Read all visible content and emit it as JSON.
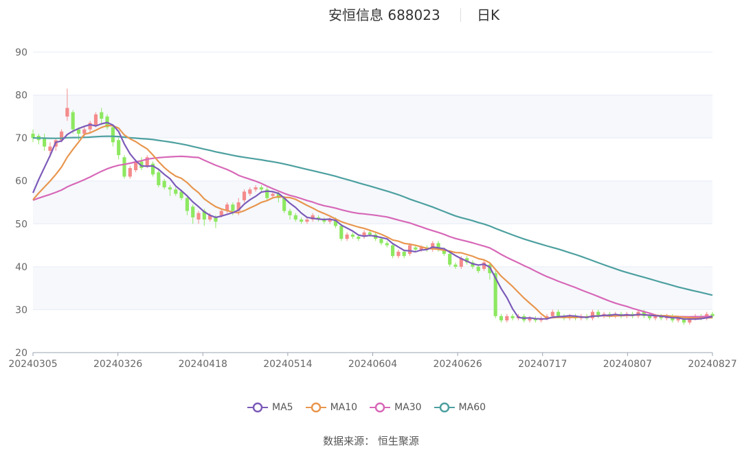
{
  "title": {
    "name": "安恒信息 688023",
    "period": "日K"
  },
  "source_text": "数据来源： 恒生聚源",
  "colors": {
    "up": "#f48b8b",
    "down": "#8de860",
    "ma5": "#7b5ab8",
    "ma10": "#e8964e",
    "ma30": "#d767b7",
    "ma60": "#4c9f9f",
    "grid": "#e6ecf5",
    "band": "#f6f8fc"
  },
  "chart_data": {
    "type": "candlestick",
    "ylim": [
      20,
      90
    ],
    "yticks": [
      20,
      30,
      40,
      50,
      60,
      70,
      80,
      90
    ],
    "xtick_labels": [
      "20240305",
      "20240326",
      "20240418",
      "20240514",
      "20240604",
      "20240626",
      "20240717",
      "20240807",
      "20240827"
    ],
    "candles": [
      [
        71,
        70,
        72,
        69
      ],
      [
        70.5,
        69.5,
        71,
        68.5
      ],
      [
        70,
        68,
        71,
        67
      ],
      [
        67,
        68,
        69,
        65.5
      ],
      [
        68,
        69.5,
        70,
        67
      ],
      [
        69.5,
        71.5,
        72,
        69
      ],
      [
        75,
        77,
        81.5,
        74
      ],
      [
        76,
        72,
        76.5,
        71
      ],
      [
        72,
        71,
        72.5,
        69.5
      ],
      [
        71,
        72,
        72.5,
        70
      ],
      [
        72,
        73.5,
        74,
        71
      ],
      [
        73,
        75.5,
        76,
        72.5
      ],
      [
        76,
        74.5,
        77,
        73
      ],
      [
        75,
        72.5,
        75.5,
        72
      ],
      [
        72.5,
        69,
        73,
        68
      ],
      [
        69.5,
        66,
        70,
        65
      ],
      [
        65.5,
        61,
        66,
        60.5
      ],
      [
        61,
        63,
        63.5,
        60.5
      ],
      [
        62.5,
        64.5,
        65,
        62
      ],
      [
        64.5,
        63,
        65.5,
        62.5
      ],
      [
        63.5,
        65.5,
        66,
        63
      ],
      [
        64,
        61.5,
        64.5,
        61
      ],
      [
        62,
        59,
        62.5,
        58.5
      ],
      [
        60,
        58.5,
        60.5,
        58
      ],
      [
        58.5,
        58,
        59,
        56.5
      ],
      [
        58,
        57,
        58.5,
        56.5
      ],
      [
        57.5,
        56,
        58,
        55.5
      ],
      [
        56,
        53,
        56.5,
        52
      ],
      [
        54,
        51.5,
        54.5,
        50
      ],
      [
        51,
        52.5,
        53,
        50
      ],
      [
        53,
        51,
        53.5,
        49.5
      ],
      [
        51,
        52,
        52.5,
        50.5
      ],
      [
        51.5,
        50.5,
        52,
        49
      ],
      [
        52,
        53,
        53.5,
        51.5
      ],
      [
        53,
        54.5,
        55,
        52.5
      ],
      [
        54.5,
        53,
        55,
        52
      ],
      [
        53,
        55,
        56,
        52
      ],
      [
        55.5,
        57.5,
        58,
        55
      ],
      [
        57,
        58,
        58.5,
        56.5
      ],
      [
        58,
        58.5,
        59,
        57.5
      ],
      [
        58.5,
        58,
        59,
        57.5
      ],
      [
        58,
        56,
        58.5,
        55.5
      ],
      [
        56.5,
        57,
        57.5,
        56
      ],
      [
        57,
        56,
        57.5,
        55
      ],
      [
        56,
        53,
        56.5,
        52.5
      ],
      [
        53,
        52,
        53.5,
        51
      ],
      [
        52,
        51,
        52.5,
        50.5
      ],
      [
        51,
        50.5,
        51.5,
        50
      ],
      [
        50.5,
        51,
        51.5,
        50
      ],
      [
        51,
        52,
        52.5,
        50.5
      ],
      [
        51.5,
        51,
        52,
        50.5
      ],
      [
        51,
        50.5,
        51.5,
        50
      ],
      [
        50.5,
        51,
        51.5,
        50
      ],
      [
        51,
        49.5,
        51.5,
        49
      ],
      [
        49.5,
        46.5,
        50,
        46
      ],
      [
        46.5,
        47.5,
        48,
        46
      ],
      [
        47.5,
        47,
        48,
        46.5
      ],
      [
        47,
        46.5,
        47.5,
        46
      ],
      [
        47,
        48,
        48.5,
        46.5
      ],
      [
        48,
        47.5,
        48.5,
        47
      ],
      [
        47.5,
        46.5,
        48,
        46
      ],
      [
        46.5,
        45.5,
        47,
        45
      ],
      [
        45.5,
        45,
        46,
        44.5
      ],
      [
        45,
        42.5,
        45.5,
        42
      ],
      [
        42.5,
        43.5,
        44,
        42
      ],
      [
        43.5,
        42.5,
        44,
        42
      ],
      [
        43,
        45,
        45.5,
        42.5
      ],
      [
        44.5,
        44,
        45,
        43.5
      ],
      [
        44,
        44.5,
        45,
        43.5
      ],
      [
        44.5,
        44,
        45,
        43.5
      ],
      [
        44,
        45.5,
        46,
        43.5
      ],
      [
        45.5,
        44,
        46,
        43.5
      ],
      [
        44,
        43,
        44.5,
        42.5
      ],
      [
        43,
        40.5,
        43.5,
        40
      ],
      [
        40.5,
        40,
        41,
        39.5
      ],
      [
        40,
        42,
        42.5,
        39.5
      ],
      [
        42,
        41,
        42.5,
        40.5
      ],
      [
        41,
        40,
        41.5,
        39.5
      ],
      [
        40,
        39,
        40.5,
        38.5
      ],
      [
        39.5,
        41,
        41.5,
        39
      ],
      [
        40.5,
        38.5,
        41,
        37
      ],
      [
        38.5,
        28.5,
        39,
        28
      ],
      [
        28.5,
        27.5,
        29,
        27
      ],
      [
        27.5,
        28.5,
        29,
        27
      ],
      [
        28.5,
        28,
        29,
        27.5
      ],
      [
        28,
        28.5,
        29,
        27.5
      ],
      [
        28.5,
        27.5,
        29,
        27
      ],
      [
        27.5,
        28,
        28.5,
        27
      ],
      [
        28,
        27.5,
        28.5,
        27
      ],
      [
        27.5,
        27.8,
        28.5,
        27
      ],
      [
        27.8,
        28.5,
        29,
        27.5
      ],
      [
        28.5,
        29.5,
        30,
        28
      ],
      [
        29.5,
        28.5,
        30,
        28
      ],
      [
        28.5,
        28,
        29,
        27.5
      ],
      [
        28,
        28.5,
        29,
        27.5
      ],
      [
        28.5,
        28,
        29,
        27.5
      ],
      [
        28,
        28.5,
        29,
        27.5
      ],
      [
        28.5,
        28,
        29,
        27.5
      ],
      [
        28,
        29.5,
        30,
        27.5
      ],
      [
        29.5,
        28.5,
        30,
        28
      ],
      [
        28.5,
        29,
        29.5,
        28
      ],
      [
        29,
        28.5,
        29.5,
        28
      ],
      [
        28.5,
        29,
        29.5,
        28
      ],
      [
        29,
        28.5,
        29.5,
        28
      ],
      [
        28.5,
        29,
        29.5,
        28
      ],
      [
        29,
        28.5,
        29.5,
        28
      ],
      [
        28.5,
        29.5,
        30,
        28
      ],
      [
        29.5,
        28.5,
        30,
        28
      ],
      [
        28.5,
        28,
        29,
        27.5
      ],
      [
        28,
        28.5,
        29,
        27.5
      ],
      [
        28.5,
        28,
        29,
        27.5
      ],
      [
        28,
        28.5,
        29,
        27.5
      ],
      [
        28.5,
        27.5,
        29,
        27
      ],
      [
        27.5,
        28,
        28.5,
        27
      ],
      [
        28,
        27,
        28.5,
        26.5
      ],
      [
        27,
        28,
        28.5,
        26.5
      ],
      [
        28,
        28.5,
        29,
        27.5
      ],
      [
        28.5,
        28,
        29,
        27.5
      ],
      [
        28,
        29,
        29.5,
        27.5
      ],
      [
        29,
        28.5,
        29.5,
        28
      ]
    ]
  },
  "legend": [
    {
      "key": "ma5",
      "label": "MA5"
    },
    {
      "key": "ma10",
      "label": "MA10"
    },
    {
      "key": "ma30",
      "label": "MA30"
    },
    {
      "key": "ma60",
      "label": "MA60"
    }
  ]
}
